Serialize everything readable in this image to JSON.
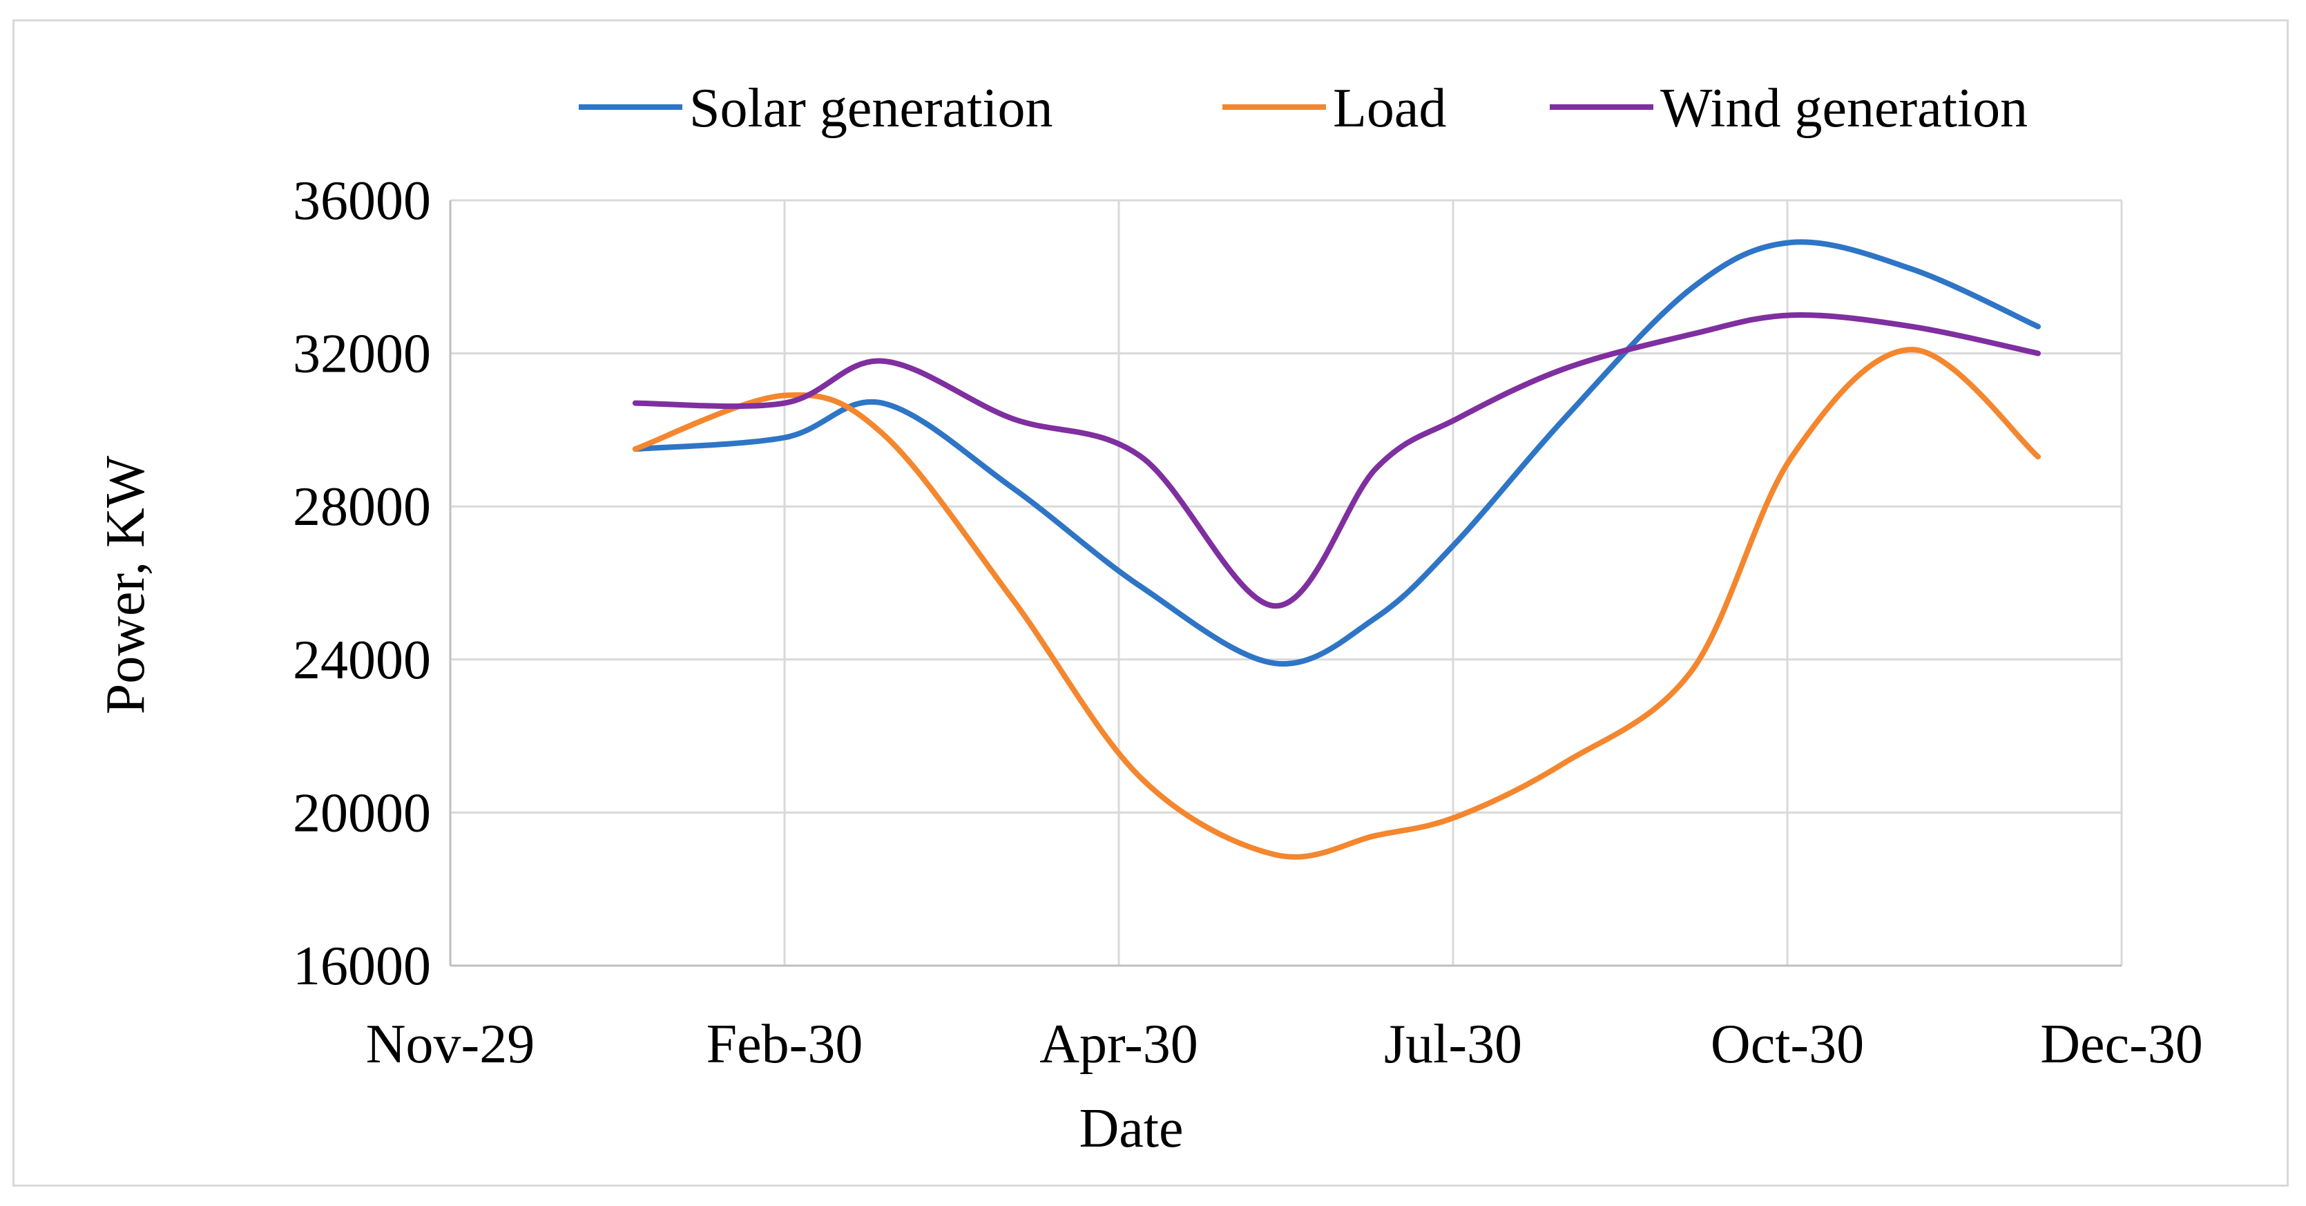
{
  "chart_data": {
    "type": "line",
    "title": "",
    "xlabel": "Date",
    "ylabel": "Power, KW",
    "ylim": [
      16000,
      36000
    ],
    "yticks": [
      16000,
      20000,
      24000,
      28000,
      32000,
      36000
    ],
    "ytick_labels": [
      "16000",
      "20000",
      "24000",
      "28000",
      "32000",
      "36000"
    ],
    "xlim": [
      0,
      15
    ],
    "xticks": [
      0,
      3,
      6,
      9,
      12,
      15
    ],
    "xtick_labels": [
      "Nov-29",
      "Feb-30",
      "Apr-30",
      "Jul-30",
      "Oct-30",
      "Dec-30"
    ],
    "grid": true,
    "legend_position": "top",
    "x": [
      1.66,
      3.0,
      3.88,
      5.04,
      6.2,
      7.4,
      8.31,
      9.04,
      10.0,
      11.14,
      12.04,
      13.12,
      14.25
    ],
    "series": [
      {
        "name": "Solar generation",
        "color": "#2E75C6",
        "values": [
          29500,
          29800,
          30700,
          28500,
          25900,
          23900,
          25100,
          27100,
          30300,
          33700,
          34900,
          34200,
          32700
        ]
      },
      {
        "name": "Load",
        "color": "#F4862E",
        "values": [
          29500,
          30900,
          29900,
          25600,
          20900,
          18900,
          19400,
          19900,
          21300,
          23700,
          29300,
          32100,
          29300
        ]
      },
      {
        "name": "Wind generation",
        "color": "#7F2F9F",
        "values": [
          30700,
          30700,
          31800,
          30300,
          29300,
          25400,
          29000,
          30300,
          31600,
          32500,
          33000,
          32700,
          32000
        ]
      }
    ]
  }
}
